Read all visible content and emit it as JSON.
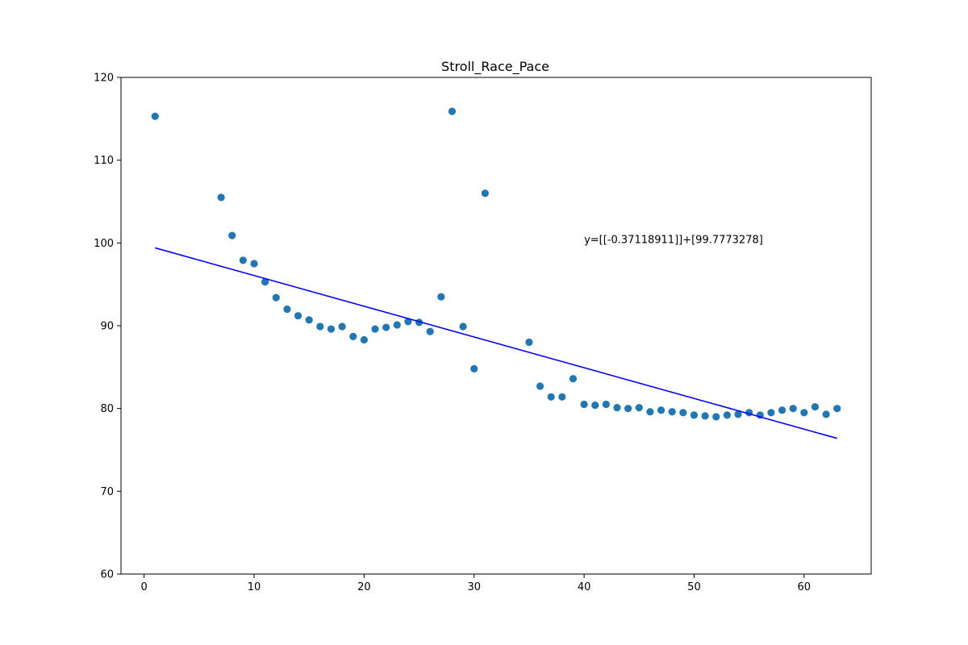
{
  "chart_data": {
    "type": "scatter",
    "title": "Stroll_Race_Pace",
    "xlabel": "",
    "ylabel": "",
    "xlim": [
      -2.1,
      66.1
    ],
    "ylim": [
      60,
      120
    ],
    "xticks": [
      0,
      10,
      20,
      30,
      40,
      50,
      60
    ],
    "yticks": [
      60,
      70,
      80,
      90,
      100,
      110,
      120
    ],
    "grid": false,
    "legend": "none",
    "series": [
      {
        "type": "scatter",
        "color": "#1f77b4",
        "points": [
          [
            1,
            115.3
          ],
          [
            7,
            105.5
          ],
          [
            8,
            100.9
          ],
          [
            9,
            97.9
          ],
          [
            10,
            97.5
          ],
          [
            11,
            95.3
          ],
          [
            12,
            93.4
          ],
          [
            13,
            92.0
          ],
          [
            14,
            91.2
          ],
          [
            15,
            90.7
          ],
          [
            16,
            89.9
          ],
          [
            17,
            89.6
          ],
          [
            18,
            89.9
          ],
          [
            19,
            88.7
          ],
          [
            20,
            88.3
          ],
          [
            21,
            89.6
          ],
          [
            22,
            89.8
          ],
          [
            23,
            90.1
          ],
          [
            24,
            90.5
          ],
          [
            25,
            90.4
          ],
          [
            26,
            89.3
          ],
          [
            27,
            93.5
          ],
          [
            28,
            115.9
          ],
          [
            29,
            89.9
          ],
          [
            30,
            84.8
          ],
          [
            31,
            106.0
          ],
          [
            35,
            88.0
          ],
          [
            36,
            82.7
          ],
          [
            37,
            81.4
          ],
          [
            38,
            81.4
          ],
          [
            39,
            83.6
          ],
          [
            40,
            80.5
          ],
          [
            41,
            80.4
          ],
          [
            42,
            80.5
          ],
          [
            43,
            80.1
          ],
          [
            44,
            80.0
          ],
          [
            45,
            80.1
          ],
          [
            46,
            79.6
          ],
          [
            47,
            79.8
          ],
          [
            48,
            79.6
          ],
          [
            49,
            79.5
          ],
          [
            50,
            79.2
          ],
          [
            51,
            79.1
          ],
          [
            52,
            79.0
          ],
          [
            53,
            79.2
          ],
          [
            54,
            79.3
          ],
          [
            55,
            79.5
          ],
          [
            56,
            79.2
          ],
          [
            57,
            79.5
          ],
          [
            58,
            79.8
          ],
          [
            59,
            80.0
          ],
          [
            60,
            79.5
          ],
          [
            61,
            80.2
          ],
          [
            62,
            79.3
          ],
          [
            63,
            80.0
          ]
        ]
      },
      {
        "type": "line",
        "color": "#0000ff",
        "slope": -0.37118911,
        "intercept": 99.7773278,
        "x_range": [
          1,
          63
        ]
      }
    ],
    "annotations": [
      {
        "text": "y=[[-0.37118911]]+[99.7773278]",
        "x": 40,
        "y": 100
      }
    ]
  }
}
